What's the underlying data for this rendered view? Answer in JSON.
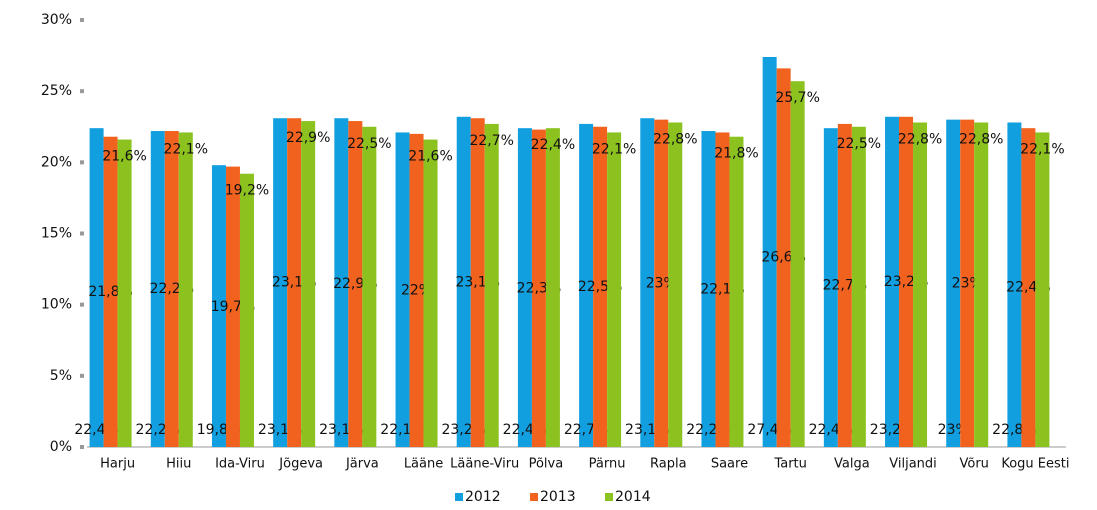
{
  "chart_data": {
    "type": "bar",
    "categories": [
      "Harju",
      "Hiiu",
      "Ida-Viru",
      "Jõgeva",
      "Järva",
      "Lääne",
      "Lääne-Viru",
      "Põlva",
      "Pärnu",
      "Rapla",
      "Saare",
      "Tartu",
      "Valga",
      "Viljandi",
      "Võru",
      "Kogu Eesti"
    ],
    "series": [
      {
        "name": "2012",
        "color": "#129fe0",
        "values": [
          22.4,
          22.2,
          19.8,
          23.1,
          23.1,
          22.1,
          23.2,
          22.4,
          22.7,
          23.1,
          22.2,
          27.4,
          22.4,
          23.2,
          23,
          22.8
        ],
        "value_labels": [
          "22,4%",
          "22,2%",
          "19,8%",
          "23,1%",
          "23,1%",
          "22,1%",
          "23,2%",
          "22,4%",
          "22,7%",
          "23,1%",
          "22,2%",
          "27,4%",
          "22,4%",
          "23,2%",
          "23%",
          "22,8%"
        ]
      },
      {
        "name": "2013",
        "color": "#f2621f",
        "values": [
          21.8,
          22.2,
          19.7,
          23.1,
          22.9,
          22,
          23.1,
          22.3,
          22.5,
          23,
          22.1,
          26.6,
          22.7,
          23.2,
          23,
          22.4
        ],
        "value_labels": [
          "21,8%",
          "22,2%",
          "19,7%",
          "23,1%",
          "22,9%",
          "22%",
          "23,1%",
          "22,3%",
          "22,5%",
          "23%",
          "22,1%",
          "26,6%",
          "22,7%",
          "23,2%",
          "23%",
          "22,4%"
        ]
      },
      {
        "name": "2014",
        "color": "#8cc21f",
        "values": [
          21.6,
          22.1,
          19.2,
          22.9,
          22.5,
          21.6,
          22.7,
          22.4,
          22.1,
          22.8,
          21.8,
          25.7,
          22.5,
          22.8,
          22.8,
          22.1
        ],
        "value_labels": [
          "21,6%",
          "22,1%",
          "19,2%",
          "22,9%",
          "22,5%",
          "21,6%",
          "22,7%",
          "22,4%",
          "22,1%",
          "22,8%",
          "21,8%",
          "25,7%",
          "22,5%",
          "22,8%",
          "22,8%",
          "22,1%"
        ]
      }
    ],
    "ylim": [
      0,
      30
    ],
    "yticks": [
      {
        "value": 0,
        "label": "0%"
      },
      {
        "value": 5,
        "label": "5%"
      },
      {
        "value": 10,
        "label": "10%"
      },
      {
        "value": 15,
        "label": "15%"
      },
      {
        "value": 20,
        "label": "20%"
      },
      {
        "value": 25,
        "label": "25%"
      },
      {
        "value": 30,
        "label": "30%"
      }
    ],
    "grid": false,
    "legend": "bottom"
  }
}
